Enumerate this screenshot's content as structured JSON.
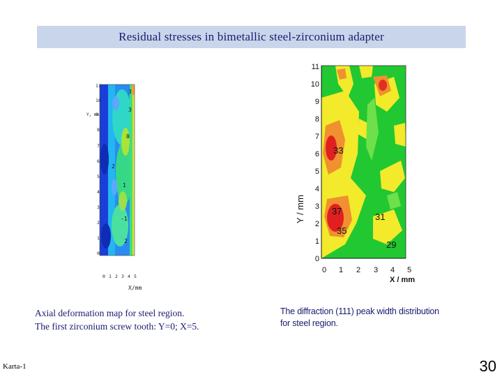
{
  "slide": {
    "title": "Residual stresses in bimetallic steel-zirconium adapter",
    "caption_left_line1": "Axial deformation map for steel region.",
    "caption_left_line2": "The first zirconium screw tooth: Y=0; X=5.",
    "caption_right_line1": "The diffraction (111) peak width distribution",
    "caption_right_line2": "for steel region.",
    "footer_label": "Karta-1",
    "page_number": "30"
  },
  "left_map": {
    "y_ticks": [
      "11",
      "10",
      "9",
      "8",
      "7",
      "6",
      "5",
      "4",
      "3",
      "2",
      "1",
      "0"
    ],
    "x_ticks": [
      "0",
      "1",
      "2",
      "3",
      "4",
      "5"
    ],
    "x_label": "X/mm",
    "y_label": "Y, mm",
    "contour_labels": [
      "3",
      "3",
      "0",
      "2",
      "1",
      "-1",
      "2"
    ]
  },
  "right_map": {
    "y_ticks": [
      "0",
      "1",
      "2",
      "3",
      "4",
      "5",
      "6",
      "7",
      "8",
      "9",
      "10",
      "11"
    ],
    "x_ticks": [
      "0",
      "1",
      "2",
      "3",
      "4",
      "5"
    ],
    "x_label": "X / mm",
    "y_label": "Y / mm",
    "contour_labels": [
      "33",
      "37",
      "35",
      "31",
      "29"
    ]
  }
}
